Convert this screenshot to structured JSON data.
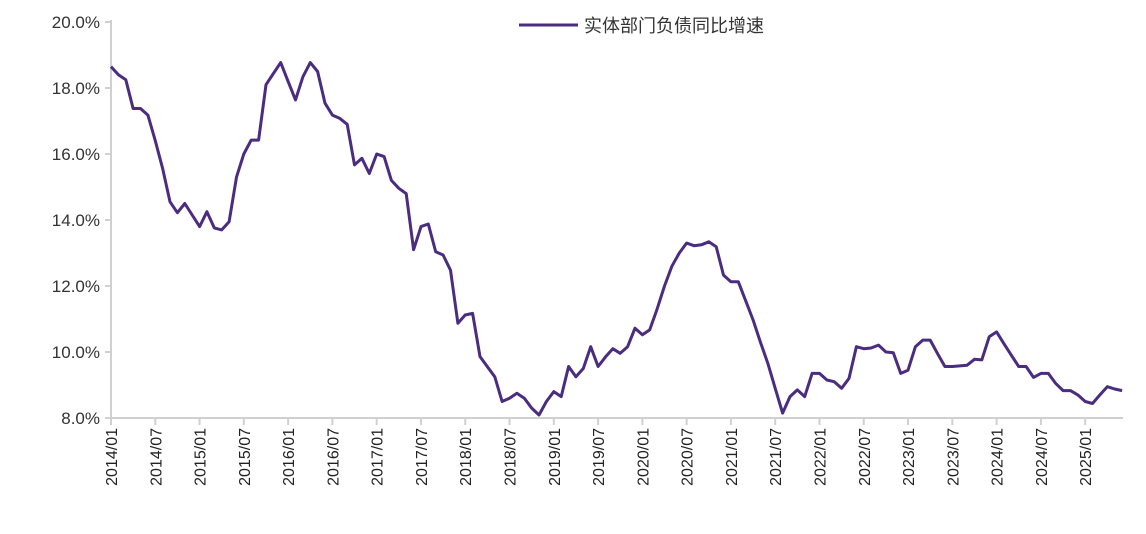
{
  "chart_data": {
    "type": "line",
    "title": "",
    "xlabel": "",
    "ylabel": "",
    "ylim": [
      8.0,
      20.0
    ],
    "yticks": [
      "8.0%",
      "10.0%",
      "12.0%",
      "14.0%",
      "16.0%",
      "18.0%",
      "20.0%"
    ],
    "ytick_values": [
      8,
      10,
      12,
      14,
      16,
      18,
      20
    ],
    "x_start": "2014/01",
    "x_end": "2025/06",
    "x_frequency": "monthly",
    "xticks": [
      "2014/01",
      "2014/07",
      "2015/01",
      "2015/07",
      "2016/01",
      "2016/07",
      "2017/01",
      "2017/07",
      "2018/01",
      "2018/07",
      "2019/01",
      "2019/07",
      "2020/01",
      "2020/07",
      "2021/01",
      "2021/07",
      "2022/01",
      "2022/07",
      "2023/01",
      "2023/07",
      "2024/01",
      "2024/07",
      "2025/01"
    ],
    "grid": false,
    "legend_position": "top-center",
    "series": [
      {
        "name": "实体部门负债同比增速",
        "color": "#4a2c80",
        "values": [
          18.65,
          18.4,
          18.25,
          17.38,
          17.38,
          17.18,
          16.4,
          15.55,
          14.55,
          14.22,
          14.5,
          14.15,
          13.8,
          14.25,
          13.76,
          13.7,
          13.95,
          15.3,
          16.0,
          16.42,
          16.42,
          18.1,
          18.44,
          18.77,
          18.2,
          17.64,
          18.34,
          18.77,
          18.5,
          17.54,
          17.18,
          17.08,
          16.9,
          15.67,
          15.87,
          15.41,
          16.0,
          15.92,
          15.2,
          14.96,
          14.8,
          13.1,
          13.8,
          13.88,
          13.04,
          12.94,
          12.48,
          10.87,
          11.12,
          11.17,
          9.86,
          9.55,
          9.25,
          8.5,
          8.6,
          8.75,
          8.6,
          8.3,
          8.09,
          8.5,
          8.8,
          8.65,
          9.56,
          9.25,
          9.5,
          10.16,
          9.56,
          9.85,
          10.1,
          9.96,
          10.16,
          10.72,
          10.52,
          10.67,
          11.3,
          12.0,
          12.6,
          13.0,
          13.3,
          13.22,
          13.25,
          13.34,
          13.19,
          12.33,
          12.13,
          12.13,
          11.55,
          10.97,
          10.3,
          9.66,
          8.9,
          8.15,
          8.65,
          8.85,
          8.65,
          9.35,
          9.35,
          9.15,
          9.1,
          8.9,
          9.2,
          10.16,
          10.1,
          10.12,
          10.21,
          10.0,
          9.98,
          9.35,
          9.45,
          10.16,
          10.36,
          10.36,
          9.95,
          9.56,
          9.56,
          9.58,
          9.6,
          9.78,
          9.76,
          10.46,
          10.61,
          10.25,
          9.9,
          9.56,
          9.56,
          9.23,
          9.35,
          9.35,
          9.05,
          8.83,
          8.83,
          8.7,
          8.5,
          8.44,
          8.7,
          8.95,
          8.88,
          8.83
        ]
      }
    ]
  }
}
